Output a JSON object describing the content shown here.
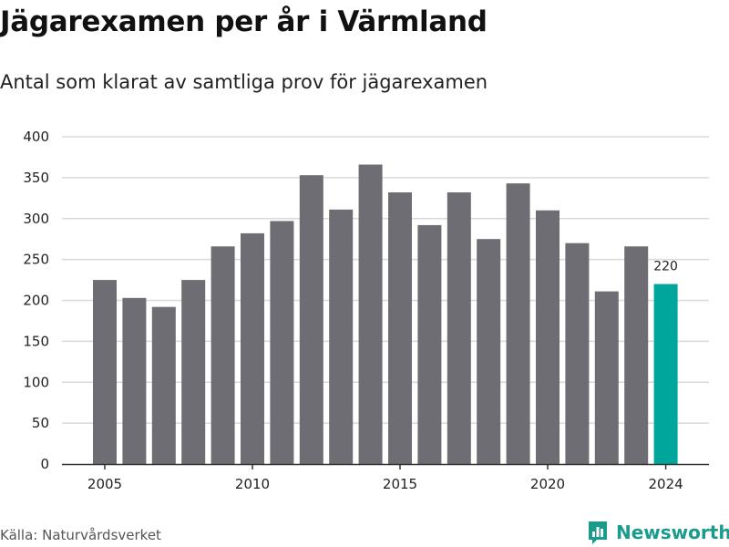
{
  "colors": {
    "bar": "#6e6d73",
    "highlight": "#00a69c",
    "grid": "#d9d9d9",
    "axis": "#333333",
    "brand": "#1a9b8c"
  },
  "footer": {
    "source": "Källa: Naturvårdsverket",
    "brand_name": "Newsworthy"
  },
  "chart_data": {
    "type": "bar",
    "title": "Jägarexamen per år i Värmland",
    "subtitle": "Antal som klarat av samtliga prov för jägarexamen",
    "xlabel": "",
    "ylabel": "",
    "ylim": [
      0,
      400
    ],
    "yticks": [
      0,
      50,
      100,
      150,
      200,
      250,
      300,
      350,
      400
    ],
    "xticks": [
      2005,
      2010,
      2015,
      2020,
      2024
    ],
    "grid": true,
    "highlight_category": 2024,
    "annotations": [
      {
        "x": 2024,
        "text": "220"
      }
    ],
    "categories": [
      2005,
      2006,
      2007,
      2008,
      2009,
      2010,
      2011,
      2012,
      2013,
      2014,
      2015,
      2016,
      2017,
      2018,
      2019,
      2020,
      2021,
      2022,
      2023,
      2024
    ],
    "values": [
      225,
      203,
      192,
      225,
      266,
      282,
      297,
      353,
      311,
      366,
      332,
      292,
      332,
      275,
      343,
      310,
      270,
      211,
      266,
      220
    ]
  }
}
